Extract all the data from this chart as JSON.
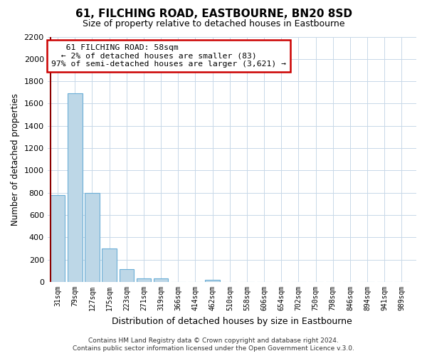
{
  "title": "61, FILCHING ROAD, EASTBOURNE, BN20 8SD",
  "subtitle": "Size of property relative to detached houses in Eastbourne",
  "xlabel": "Distribution of detached houses by size in Eastbourne",
  "ylabel": "Number of detached properties",
  "categories": [
    "31sqm",
    "79sqm",
    "127sqm",
    "175sqm",
    "223sqm",
    "271sqm",
    "319sqm",
    "366sqm",
    "414sqm",
    "462sqm",
    "510sqm",
    "558sqm",
    "606sqm",
    "654sqm",
    "702sqm",
    "750sqm",
    "798sqm",
    "846sqm",
    "894sqm",
    "941sqm",
    "989sqm"
  ],
  "values": [
    780,
    1690,
    800,
    300,
    115,
    35,
    30,
    0,
    0,
    20,
    0,
    0,
    0,
    0,
    0,
    0,
    0,
    0,
    0,
    0,
    0
  ],
  "bar_color": "#bdd7e7",
  "bar_edge_color": "#6baed6",
  "property_line_color": "#8b0000",
  "ylim": [
    0,
    2200
  ],
  "yticks": [
    0,
    200,
    400,
    600,
    800,
    1000,
    1200,
    1400,
    1600,
    1800,
    2000,
    2200
  ],
  "annotation_title": "61 FILCHING ROAD: 58sqm",
  "annotation_line1": "← 2% of detached houses are smaller (83)",
  "annotation_line2": "97% of semi-detached houses are larger (3,621) →",
  "annotation_box_color": "white",
  "annotation_box_edge_color": "#cc0000",
  "footer_line1": "Contains HM Land Registry data © Crown copyright and database right 2024.",
  "footer_line2": "Contains public sector information licensed under the Open Government Licence v.3.0.",
  "grid_color": "#c8d8e8",
  "background_color": "#ffffff",
  "plot_bg_color": "#ffffff"
}
